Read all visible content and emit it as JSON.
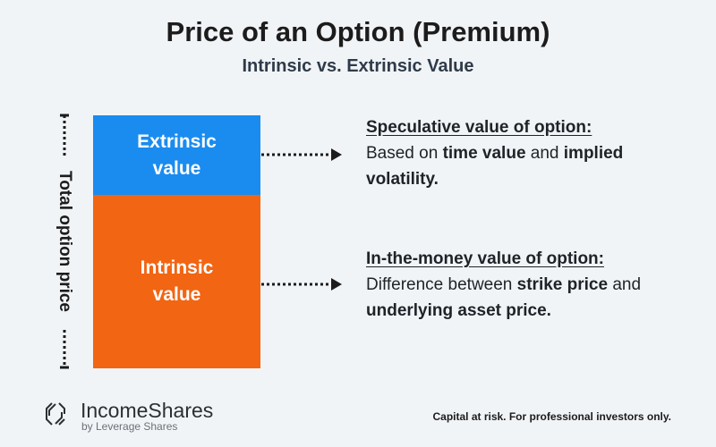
{
  "header": {
    "title": "Price of an Option (Premium)",
    "subtitle": "Intrinsic vs. Extrinsic Value"
  },
  "colors": {
    "extrinsic": "#1a8cf0",
    "intrinsic": "#f26513",
    "background": "#f1f4f7"
  },
  "diagram": {
    "total_label": "Total option price",
    "extrinsic_box": {
      "line1": "Extrinsic",
      "line2": "value"
    },
    "intrinsic_box": {
      "line1": "Intrinsic",
      "line2": "value"
    },
    "extrinsic_desc": {
      "heading": "Speculative value of option:",
      "t1": "Based on ",
      "b1": "time value",
      "t2": " and ",
      "b2": "implied volatility."
    },
    "intrinsic_desc": {
      "heading": "In-the-money value of option:",
      "t1": "Difference between ",
      "b1": "strike price",
      "t2": " and ",
      "b2": "underlying asset price."
    }
  },
  "footer": {
    "brand": "IncomeShares",
    "brand_sub": "by Leverage Shares",
    "disclaimer": "Capital at risk. For professional investors only."
  }
}
